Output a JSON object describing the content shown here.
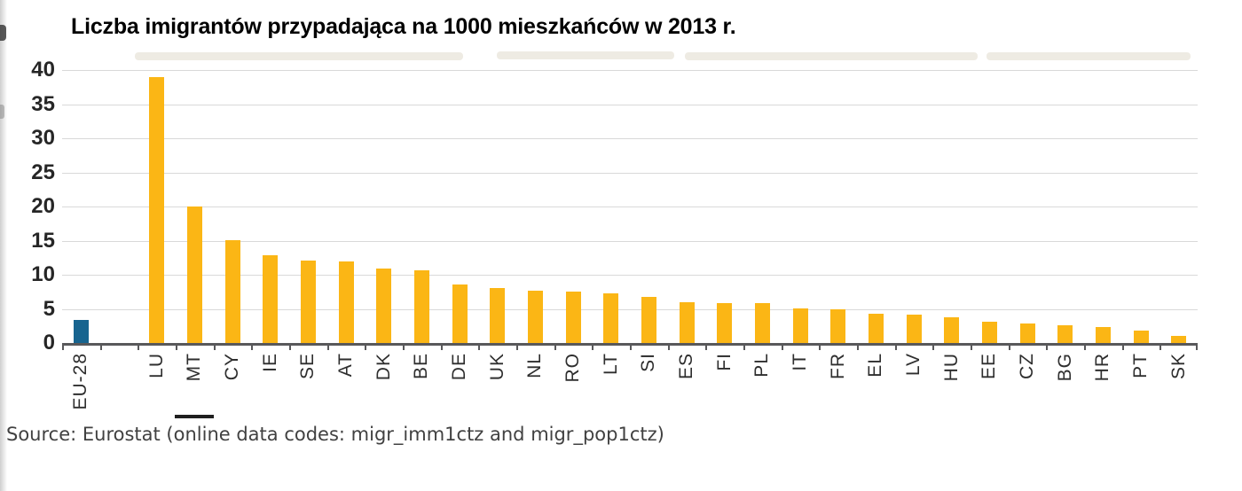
{
  "page": {
    "title": "Liczba imigrantów przypadająca na 1000 mieszkańców w 2013 r.",
    "source_note": "Source: Eurostat (online data codes: migr_imm1ctz and migr_pop1ctz)"
  },
  "colors": {
    "country_bar": "#FBB615",
    "eu_bar": "#17648F",
    "gridline": "#D9D9D9",
    "axis": "#58585A"
  },
  "chart_data": {
    "type": "bar",
    "title": "Liczba imigrantów przypadająca na 1000 mieszkańców w 2013 r.",
    "xlabel": "",
    "ylabel": "",
    "ylim": [
      0,
      40
    ],
    "yticks": [
      0,
      5,
      10,
      15,
      20,
      25,
      30,
      35,
      40
    ],
    "grid": true,
    "legend": null,
    "categories": [
      "EU-28",
      "LU",
      "MT",
      "CY",
      "IE",
      "SE",
      "AT",
      "DK",
      "BE",
      "DE",
      "UK",
      "NL",
      "RO",
      "LT",
      "SI",
      "ES",
      "FI",
      "PL",
      "IT",
      "FR",
      "EL",
      "LV",
      "HU",
      "EE",
      "CZ",
      "BG",
      "HR",
      "PT",
      "SK"
    ],
    "values": [
      3.4,
      39,
      20,
      15.1,
      12.8,
      12.1,
      12,
      10.9,
      10.6,
      8.6,
      8.1,
      7.6,
      7.5,
      7.3,
      6.8,
      6,
      5.9,
      5.8,
      5.1,
      5,
      4.3,
      4.1,
      3.8,
      3.1,
      2.9,
      2.6,
      2.3,
      1.8,
      1
    ],
    "highlight_category": "EU-28",
    "gap_after_category": "EU-28"
  }
}
